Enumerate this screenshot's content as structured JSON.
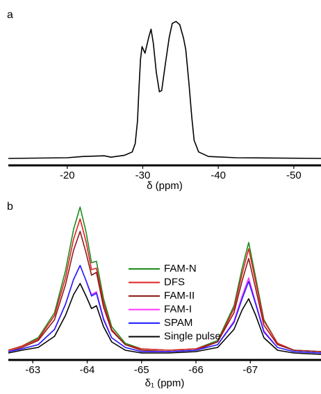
{
  "chart_data": [
    {
      "type": "line",
      "label": "a",
      "x_label": "δ (ppm)",
      "xlim": [
        -12.2,
        -53.6
      ],
      "xticks": [
        -20,
        -30,
        -40,
        -50
      ],
      "ylim": [
        0,
        105
      ],
      "x": [
        -12.2,
        -20.0,
        -22.1,
        -24.9,
        -25.8,
        -27.6,
        -28.6,
        -29.0,
        -29.3,
        -29.5,
        -29.7,
        -29.9,
        -30.3,
        -30.8,
        -31.1,
        -31.4,
        -31.8,
        -32.2,
        -32.5,
        -33.0,
        -33.5,
        -33.9,
        -34.4,
        -34.9,
        -35.4,
        -35.7,
        -36.1,
        -36.5,
        -36.8,
        -37.4,
        -38.7,
        -42.4,
        -53.6
      ],
      "series": [
        {
          "color": "#000000",
          "values": [
            0,
            0.5,
            1.4,
            1.9,
            0.9,
            2.3,
            4.7,
            10.8,
            27.2,
            50.7,
            71.8,
            81.2,
            76.5,
            88.3,
            93.9,
            83.6,
            62.4,
            48.4,
            49.3,
            69.0,
            87.8,
            98.1,
            99.5,
            97.2,
            87.3,
            78.9,
            55.4,
            29.6,
            13.1,
            4.7,
            1.4,
            0.5,
            0
          ]
        }
      ]
    },
    {
      "type": "line",
      "label": "b",
      "x_label": "δ₁ (ppm)",
      "xlim": [
        -62.55,
        -68.3
      ],
      "xticks": [
        -63,
        -64,
        -65,
        -66,
        -67
      ],
      "ylim": [
        0,
        110
      ],
      "x": [
        -62.55,
        -62.8,
        -63.1,
        -63.4,
        -63.6,
        -63.75,
        -63.87,
        -63.98,
        -64.08,
        -64.17,
        -64.3,
        -64.45,
        -64.7,
        -65.0,
        -65.5,
        -66.0,
        -66.4,
        -66.7,
        -66.85,
        -66.97,
        -67.1,
        -67.25,
        -67.5,
        -67.8,
        -68.3
      ],
      "series": [
        {
          "name": "FAM-N",
          "color": "#1a8a1a",
          "values": [
            3,
            6,
            12,
            30,
            60,
            90,
            106,
            88,
            66,
            67,
            40,
            20,
            8,
            4,
            3,
            4,
            10,
            35,
            62,
            80.5,
            55,
            25,
            8,
            3,
            2
          ]
        },
        {
          "name": "DFS",
          "color": "#e02020",
          "values": [
            3,
            6,
            11,
            28,
            55,
            83,
            97.5,
            81,
            61,
            62,
            37,
            18,
            7,
            4,
            3,
            4,
            9,
            33,
            58,
            76,
            52,
            24,
            8,
            3,
            2
          ]
        },
        {
          "name": "FAM-II",
          "color": "#8b1a1a",
          "values": [
            2,
            5,
            10,
            25,
            50,
            75,
            88.5,
            73,
            57,
            59,
            34,
            17,
            7,
            3,
            2,
            3,
            9,
            30,
            53,
            69,
            47,
            21,
            7,
            3,
            2
          ]
        },
        {
          "name": "FAM-I",
          "color": "#ff30ff",
          "values": [
            2,
            4,
            7,
            18,
            36,
            54,
            64,
            53,
            43,
            45,
            26,
            12,
            5,
            2,
            2,
            3,
            7,
            24,
            42,
            55,
            37,
            17,
            5,
            2,
            1
          ]
        },
        {
          "name": "SPAM",
          "color": "#2020ff",
          "values": [
            2,
            4,
            7,
            18,
            36,
            54,
            64,
            53,
            42,
            44,
            25,
            12,
            5,
            2,
            2,
            3,
            7,
            23,
            40,
            52.5,
            36,
            16,
            5,
            2,
            1
          ]
        },
        {
          "name": "Single pulse",
          "color": "#000000",
          "values": [
            1,
            3,
            5,
            13,
            28,
            43,
            51,
            42,
            33,
            35,
            20,
            9,
            3,
            1,
            1,
            2,
            5,
            18,
            32,
            40,
            28,
            12,
            3,
            1,
            0
          ]
        }
      ]
    }
  ]
}
